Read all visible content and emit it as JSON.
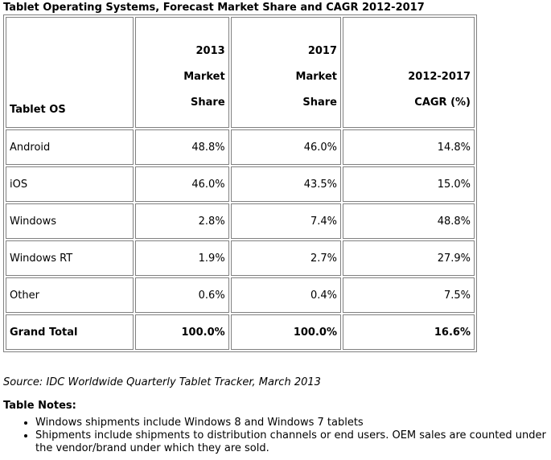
{
  "title": "Tablet Operating Systems, Forecast Market Share and CAGR 2012-2017",
  "table": {
    "headers": {
      "os": "Tablet OS",
      "share2013": [
        "2013",
        "Market",
        "Share"
      ],
      "share2017": [
        "2017",
        "Market",
        "Share"
      ],
      "cagr": [
        "2012-2017",
        "CAGR (%)"
      ]
    },
    "rows": [
      {
        "os": "Android",
        "share2013": "48.8%",
        "share2017": "46.0%",
        "cagr": "14.8%"
      },
      {
        "os": "iOS",
        "share2013": "46.0%",
        "share2017": "43.5%",
        "cagr": "15.0%"
      },
      {
        "os": "Windows",
        "share2013": "2.8%",
        "share2017": "7.4%",
        "cagr": "48.8%"
      },
      {
        "os": "Windows RT",
        "share2013": "1.9%",
        "share2017": "2.7%",
        "cagr": "27.9%"
      },
      {
        "os": "Other",
        "share2013": "0.6%",
        "share2017": "0.4%",
        "cagr": "7.5%"
      }
    ],
    "total": {
      "os": "Grand Total",
      "share2013": "100.0%",
      "share2017": "100.0%",
      "cagr": "16.6%"
    }
  },
  "source": "Source: IDC Worldwide Quarterly Tablet Tracker, March 2013",
  "notes": {
    "title": "Table Notes:",
    "items": [
      "Windows shipments include Windows 8 and Windows 7 tablets",
      "Shipments include shipments to distribution channels or end users. OEM sales are counted under the vendor/brand under which they are sold."
    ]
  }
}
